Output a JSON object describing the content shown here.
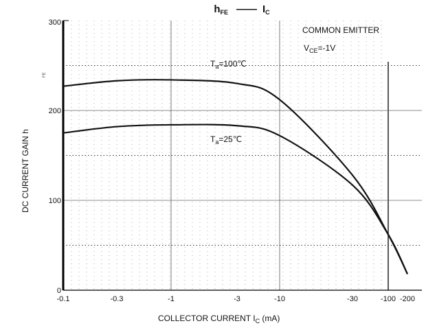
{
  "chart_data": {
    "type": "line",
    "title": {
      "left_main": "h",
      "left_sub": "FE",
      "dash": "——",
      "right_main": "I",
      "right_sub": "C"
    },
    "xlabel": {
      "prefix": "COLLECTOR CURRENT  I",
      "sub": "C",
      "unit": "   (mA)"
    },
    "ylabel": {
      "main": "DC CURRENT GAIN   h",
      "sub": "FE"
    },
    "x_ticks": [
      "-0.1",
      "-0.3",
      "-1",
      "-3",
      "-10",
      "-30",
      "-100",
      "-200"
    ],
    "y_ticks": [
      "0",
      "100",
      "200",
      "300"
    ],
    "ylim": [
      0,
      300
    ],
    "conditions": {
      "line1": "COMMON EMITTER",
      "line2_main": "V",
      "line2_sub": "CE",
      "line2_rest": "=-1V"
    },
    "series": [
      {
        "name_main": "T",
        "name_sub": "a",
        "name_rest": "=100℃",
        "points": [
          [
            "-0.1",
            227
          ],
          [
            "-0.3",
            233
          ],
          [
            "-1",
            234
          ],
          [
            "-3",
            230
          ],
          [
            "-10",
            212
          ],
          [
            "-30",
            128
          ],
          [
            "-100",
            62
          ],
          [
            "-200",
            18
          ]
        ]
      },
      {
        "name_main": "T",
        "name_sub": "a",
        "name_rest": "=25℃",
        "points": [
          [
            "-0.1",
            175
          ],
          [
            "-0.3",
            182
          ],
          [
            "-1",
            184
          ],
          [
            "-3",
            183
          ],
          [
            "-10",
            172
          ],
          [
            "-30",
            117
          ],
          [
            "-100",
            62
          ],
          [
            "-200",
            18
          ]
        ]
      }
    ]
  }
}
